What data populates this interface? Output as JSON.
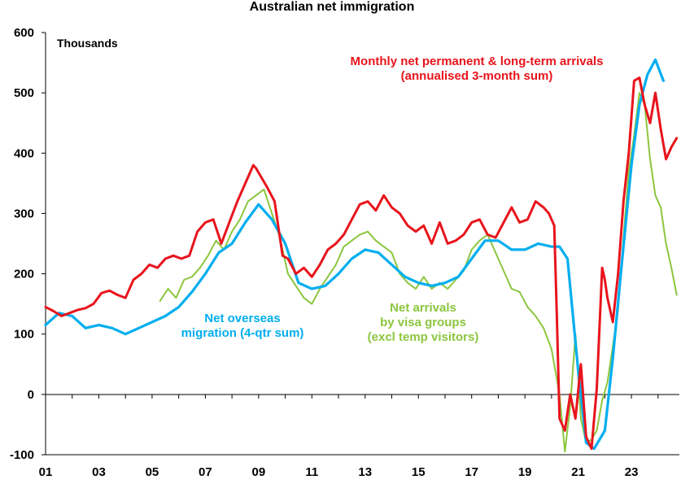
{
  "chart_data": {
    "type": "line",
    "title": "Australian net immigration",
    "unit_label": "Thousands",
    "ylim": [
      -100,
      600
    ],
    "yticks": [
      -100,
      0,
      100,
      200,
      300,
      400,
      500,
      600
    ],
    "ytick_labels": [
      "-100",
      "0",
      "100",
      "200",
      "300",
      "400",
      "500",
      "600"
    ],
    "xlim": [
      2001.0,
      2024.8
    ],
    "xticks": [
      2001,
      2003,
      2005,
      2007,
      2009,
      2011,
      2013,
      2015,
      2017,
      2019,
      2021,
      2023
    ],
    "xtick_labels": [
      "01",
      "03",
      "05",
      "07",
      "09",
      "11",
      "13",
      "15",
      "17",
      "19",
      "21",
      "23"
    ],
    "series": [
      {
        "name": "Monthly net permanent & long-term arrivals (annualised 3-month sum)",
        "label_lines": [
          "Monthly net permanent & long-term arrivals",
          "(annualised 3-month sum)"
        ],
        "color": "#e8141c",
        "x": [
          2001.0,
          2001.3,
          2001.6,
          2001.9,
          2002.2,
          2002.5,
          2002.8,
          2003.1,
          2003.4,
          2003.7,
          2004.0,
          2004.3,
          2004.6,
          2004.9,
          2005.2,
          2005.5,
          2005.8,
          2006.1,
          2006.4,
          2006.7,
          2007.0,
          2007.3,
          2007.6,
          2007.9,
          2008.2,
          2008.5,
          2008.8,
          2008.9,
          2009.1,
          2009.3,
          2009.6,
          2009.9,
          2010.1,
          2010.4,
          2010.7,
          2011.0,
          2011.3,
          2011.6,
          2011.9,
          2012.2,
          2012.5,
          2012.8,
          2013.1,
          2013.4,
          2013.7,
          2014.0,
          2014.3,
          2014.6,
          2014.9,
          2015.2,
          2015.5,
          2015.8,
          2016.1,
          2016.4,
          2016.7,
          2017.0,
          2017.3,
          2017.6,
          2017.9,
          2018.2,
          2018.5,
          2018.8,
          2019.1,
          2019.4,
          2019.7,
          2019.9,
          2020.1,
          2020.2,
          2020.3,
          2020.5,
          2020.7,
          2020.9,
          2021.1,
          2021.3,
          2021.5,
          2021.7,
          2021.9,
          2022.0,
          2022.1,
          2022.3,
          2022.5,
          2022.7,
          2022.9,
          2023.1,
          2023.3,
          2023.5,
          2023.7,
          2023.9,
          2024.1,
          2024.3,
          2024.5,
          2024.7
        ],
        "values": [
          145,
          138,
          130,
          135,
          140,
          143,
          150,
          168,
          172,
          165,
          160,
          190,
          200,
          215,
          210,
          225,
          230,
          225,
          230,
          270,
          285,
          290,
          250,
          285,
          320,
          350,
          380,
          375,
          360,
          345,
          320,
          230,
          225,
          200,
          210,
          195,
          215,
          240,
          250,
          265,
          290,
          315,
          320,
          305,
          330,
          310,
          300,
          280,
          270,
          280,
          250,
          285,
          250,
          255,
          265,
          285,
          290,
          265,
          260,
          285,
          310,
          285,
          290,
          320,
          310,
          300,
          280,
          130,
          -40,
          -60,
          0,
          -40,
          50,
          -70,
          -90,
          10,
          210,
          190,
          160,
          120,
          200,
          320,
          400,
          520,
          525,
          480,
          450,
          500,
          440,
          390,
          410,
          425
        ]
      },
      {
        "name": "Net overseas migration (4-qtr sum)",
        "label_lines": [
          "Net overseas",
          "migration (4-qtr sum)"
        ],
        "color": "#00aeef",
        "x": [
          2001.0,
          2001.5,
          2002.0,
          2002.5,
          2003.0,
          2003.5,
          2004.0,
          2004.5,
          2005.0,
          2005.5,
          2006.0,
          2006.5,
          2007.0,
          2007.5,
          2008.0,
          2008.5,
          2009.0,
          2009.5,
          2010.0,
          2010.5,
          2011.0,
          2011.5,
          2012.0,
          2012.5,
          2013.0,
          2013.5,
          2014.0,
          2014.5,
          2015.0,
          2015.5,
          2016.0,
          2016.5,
          2017.0,
          2017.5,
          2018.0,
          2018.5,
          2019.0,
          2019.5,
          2020.0,
          2020.3,
          2020.6,
          2021.0,
          2021.3,
          2021.6,
          2022.0,
          2022.3,
          2022.6,
          2023.0,
          2023.3,
          2023.6,
          2023.9,
          2024.2
        ],
        "values": [
          115,
          135,
          130,
          110,
          115,
          110,
          100,
          110,
          120,
          130,
          145,
          170,
          200,
          235,
          250,
          285,
          315,
          290,
          250,
          185,
          175,
          180,
          200,
          225,
          240,
          235,
          215,
          195,
          185,
          180,
          185,
          195,
          225,
          255,
          255,
          240,
          240,
          250,
          245,
          245,
          225,
          40,
          -80,
          -90,
          -60,
          60,
          200,
          380,
          480,
          530,
          555,
          520
        ]
      },
      {
        "name": "Net arrivals by visa groups (excl temp visitors)",
        "label_lines": [
          "Net arrivals",
          "by visa groups",
          "(excl temp visitors)"
        ],
        "color": "#8cc63f",
        "x": [
          2005.3,
          2005.6,
          2005.9,
          2006.2,
          2006.5,
          2006.8,
          2007.1,
          2007.4,
          2007.7,
          2008.0,
          2008.3,
          2008.6,
          2008.9,
          2009.2,
          2009.5,
          2009.8,
          2010.1,
          2010.4,
          2010.7,
          2011.0,
          2011.3,
          2011.6,
          2011.9,
          2012.2,
          2012.5,
          2012.8,
          2013.1,
          2013.4,
          2013.7,
          2014.0,
          2014.3,
          2014.6,
          2014.9,
          2015.2,
          2015.5,
          2015.8,
          2016.1,
          2016.4,
          2016.7,
          2017.0,
          2017.3,
          2017.6,
          2017.9,
          2018.2,
          2018.5,
          2018.8,
          2019.1,
          2019.4,
          2019.7,
          2020.0,
          2020.3,
          2020.5,
          2020.7,
          2020.9,
          2021.1,
          2021.3,
          2021.5,
          2021.7,
          2021.9,
          2022.1,
          2022.3,
          2022.5,
          2022.7,
          2022.9,
          2023.1,
          2023.3,
          2023.5,
          2023.7,
          2023.9,
          2024.1,
          2024.3,
          2024.5,
          2024.7
        ],
        "values": [
          155,
          175,
          160,
          190,
          195,
          210,
          230,
          255,
          240,
          270,
          290,
          320,
          330,
          340,
          300,
          260,
          200,
          180,
          160,
          150,
          175,
          195,
          215,
          245,
          255,
          265,
          270,
          255,
          245,
          235,
          200,
          185,
          175,
          195,
          175,
          185,
          175,
          190,
          205,
          240,
          255,
          265,
          235,
          205,
          175,
          170,
          145,
          130,
          110,
          75,
          0,
          -95,
          -20,
          100,
          -40,
          -80,
          -75,
          -60,
          -10,
          20,
          80,
          140,
          260,
          370,
          430,
          500,
          480,
          390,
          330,
          310,
          250,
          210,
          165
        ]
      }
    ]
  }
}
